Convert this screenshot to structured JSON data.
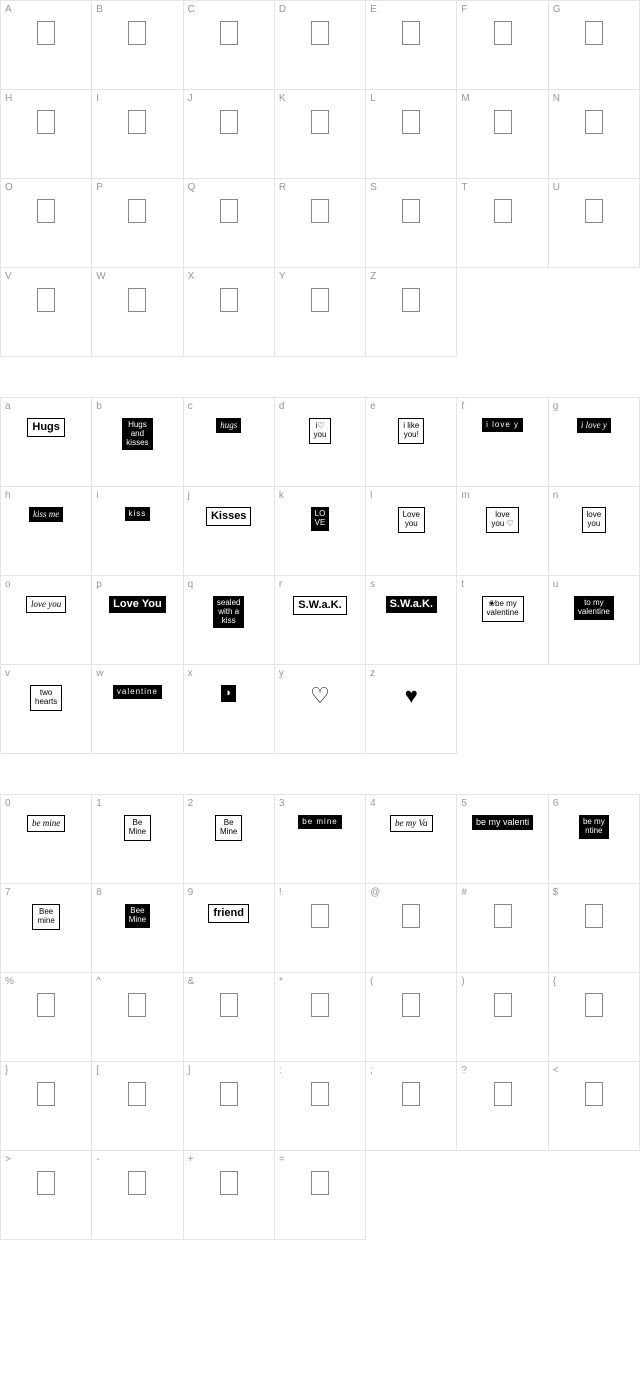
{
  "sections": [
    {
      "id": "uppercase",
      "cells": [
        {
          "char": "A",
          "type": "empty"
        },
        {
          "char": "B",
          "type": "empty"
        },
        {
          "char": "C",
          "type": "empty"
        },
        {
          "char": "D",
          "type": "empty"
        },
        {
          "char": "E",
          "type": "empty"
        },
        {
          "char": "F",
          "type": "empty"
        },
        {
          "char": "G",
          "type": "empty"
        },
        {
          "char": "H",
          "type": "empty"
        },
        {
          "char": "I",
          "type": "empty"
        },
        {
          "char": "J",
          "type": "empty"
        },
        {
          "char": "K",
          "type": "empty"
        },
        {
          "char": "L",
          "type": "empty"
        },
        {
          "char": "M",
          "type": "empty"
        },
        {
          "char": "N",
          "type": "empty"
        },
        {
          "char": "O",
          "type": "empty"
        },
        {
          "char": "P",
          "type": "empty"
        },
        {
          "char": "Q",
          "type": "empty"
        },
        {
          "char": "R",
          "type": "empty"
        },
        {
          "char": "S",
          "type": "empty"
        },
        {
          "char": "T",
          "type": "empty"
        },
        {
          "char": "U",
          "type": "empty"
        },
        {
          "char": "V",
          "type": "empty"
        },
        {
          "char": "W",
          "type": "empty"
        },
        {
          "char": "X",
          "type": "empty"
        },
        {
          "char": "Y",
          "type": "empty"
        },
        {
          "char": "Z",
          "type": "empty"
        },
        {
          "char": "",
          "type": "blank"
        },
        {
          "char": "",
          "type": "blank"
        }
      ]
    },
    {
      "id": "lowercase",
      "cells": [
        {
          "char": "a",
          "type": "glyph",
          "text": "Hugs",
          "style": "light tall"
        },
        {
          "char": "b",
          "type": "glyph",
          "text": "Hugs\nand\nkisses",
          "style": "dark multiline"
        },
        {
          "char": "c",
          "type": "glyph",
          "text": "hugs",
          "style": "dark script"
        },
        {
          "char": "d",
          "type": "glyph",
          "text": "i♡\nyou",
          "style": "light multiline"
        },
        {
          "char": "e",
          "type": "glyph",
          "text": "i like\nyou!",
          "style": "light multiline"
        },
        {
          "char": "f",
          "type": "glyph",
          "text": "i love y",
          "style": "dark wide"
        },
        {
          "char": "g",
          "type": "glyph",
          "text": "i love y",
          "style": "dark script"
        },
        {
          "char": "h",
          "type": "glyph",
          "text": "kiss me",
          "style": "dark script"
        },
        {
          "char": "i",
          "type": "glyph",
          "text": "kiss",
          "style": "dark wide"
        },
        {
          "char": "j",
          "type": "glyph",
          "text": "Kisses",
          "style": "light tall"
        },
        {
          "char": "k",
          "type": "glyph",
          "text": "LO\nVE",
          "style": "dark multiline"
        },
        {
          "char": "l",
          "type": "glyph",
          "text": "Love\nyou",
          "style": "light multiline"
        },
        {
          "char": "m",
          "type": "glyph",
          "text": "love\nyou ♡",
          "style": "light multiline"
        },
        {
          "char": "n",
          "type": "glyph",
          "text": "love\nyou",
          "style": "light multiline"
        },
        {
          "char": "o",
          "type": "glyph",
          "text": "love you",
          "style": "light script"
        },
        {
          "char": "p",
          "type": "glyph",
          "text": "Love You",
          "style": "dark tall"
        },
        {
          "char": "q",
          "type": "glyph",
          "text": "sealed\nwith a\nkiss",
          "style": "dark multiline"
        },
        {
          "char": "r",
          "type": "glyph",
          "text": "S.W.a.K.",
          "style": "light tall"
        },
        {
          "char": "s",
          "type": "glyph",
          "text": "S.W.a.K.",
          "style": "dark tall"
        },
        {
          "char": "t",
          "type": "glyph",
          "text": "❀be my\nvalentine",
          "style": "light multiline"
        },
        {
          "char": "u",
          "type": "glyph",
          "text": "to my\nvalentine",
          "style": "dark multiline"
        },
        {
          "char": "v",
          "type": "glyph",
          "text": "two\nhearts",
          "style": "light multiline"
        },
        {
          "char": "w",
          "type": "glyph",
          "text": "valentine",
          "style": "dark wide"
        },
        {
          "char": "x",
          "type": "glyph",
          "text": "◗",
          "style": "dark tall noborder"
        },
        {
          "char": "y",
          "type": "glyph",
          "text": "♡",
          "style": "heart-outline"
        },
        {
          "char": "z",
          "type": "glyph",
          "text": "♥",
          "style": "heart-solid"
        },
        {
          "char": "",
          "type": "blank"
        },
        {
          "char": "",
          "type": "blank"
        }
      ]
    },
    {
      "id": "numbers",
      "cells": [
        {
          "char": "0",
          "type": "glyph",
          "text": "be mine",
          "style": "light script"
        },
        {
          "char": "1",
          "type": "glyph",
          "text": "Be\nMine",
          "style": "light multiline"
        },
        {
          "char": "2",
          "type": "glyph",
          "text": "Be\nMine",
          "style": "light multiline"
        },
        {
          "char": "3",
          "type": "glyph",
          "text": "be mine",
          "style": "dark wide"
        },
        {
          "char": "4",
          "type": "glyph",
          "text": "be my Va",
          "style": "light script"
        },
        {
          "char": "5",
          "type": "glyph",
          "text": "be my valenti",
          "style": "dark"
        },
        {
          "char": "6",
          "type": "glyph",
          "text": "be my\nntine",
          "style": "dark multiline"
        },
        {
          "char": "7",
          "type": "glyph",
          "text": "Bee\nmine",
          "style": "light multiline"
        },
        {
          "char": "8",
          "type": "glyph",
          "text": "Bee\nMine",
          "style": "dark multiline"
        },
        {
          "char": "9",
          "type": "glyph",
          "text": "friend",
          "style": "light tall"
        },
        {
          "char": "!",
          "type": "empty"
        },
        {
          "char": "@",
          "type": "empty"
        },
        {
          "char": "#",
          "type": "empty"
        },
        {
          "char": "$",
          "type": "empty"
        },
        {
          "char": "%",
          "type": "empty"
        },
        {
          "char": "^",
          "type": "empty"
        },
        {
          "char": "&",
          "type": "empty"
        },
        {
          "char": "*",
          "type": "empty"
        },
        {
          "char": "(",
          "type": "empty"
        },
        {
          "char": ")",
          "type": "empty"
        },
        {
          "char": "{",
          "type": "empty"
        },
        {
          "char": "}",
          "type": "empty"
        },
        {
          "char": "[",
          "type": "empty"
        },
        {
          "char": "]",
          "type": "empty"
        },
        {
          "char": ":",
          "type": "empty"
        },
        {
          "char": ";",
          "type": "empty"
        },
        {
          "char": "?",
          "type": "empty"
        },
        {
          "char": "<",
          "type": "empty"
        },
        {
          "char": ">",
          "type": "empty"
        },
        {
          "char": "-",
          "type": "empty"
        },
        {
          "char": "+",
          "type": "empty"
        },
        {
          "char": "=",
          "type": "empty"
        },
        {
          "char": "",
          "type": "blank"
        },
        {
          "char": "",
          "type": "blank"
        },
        {
          "char": "",
          "type": "blank"
        }
      ]
    }
  ],
  "colors": {
    "border": "#e5e5e5",
    "label": "#999999",
    "glyph_dark_bg": "#000000",
    "glyph_dark_fg": "#ffffff",
    "glyph_light_bg": "#ffffff",
    "glyph_light_fg": "#000000"
  }
}
